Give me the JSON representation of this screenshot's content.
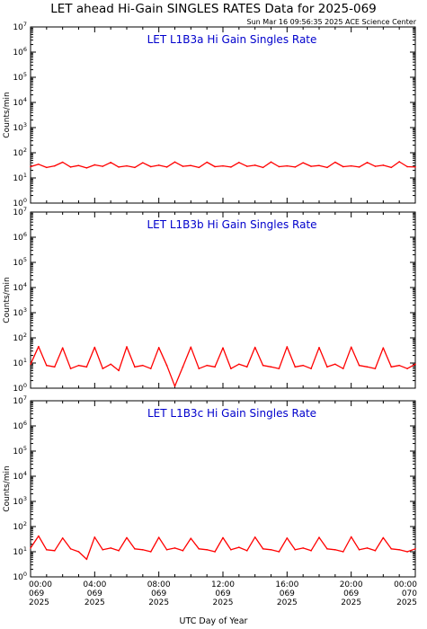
{
  "header": {
    "title": "LET ahead Hi-Gain SINGLES RATES Data for 2025-069",
    "timestamp": "Sun Mar 16 09:56:35 2025 ACE Science Center"
  },
  "chart_data": {
    "type": "line",
    "xlabel": "UTC Day of Year",
    "xlim_hours": [
      0,
      24
    ],
    "x_ticks": [
      {
        "time": "00:00",
        "day": "069",
        "year": "2025"
      },
      {
        "time": "04:00",
        "day": "069",
        "year": "2025"
      },
      {
        "time": "08:00",
        "day": "069",
        "year": "2025"
      },
      {
        "time": "12:00",
        "day": "069",
        "year": "2025"
      },
      {
        "time": "16:00",
        "day": "069",
        "year": "2025"
      },
      {
        "time": "20:00",
        "day": "069",
        "year": "2025"
      },
      {
        "time": "00:00",
        "day": "070",
        "year": "2025"
      }
    ],
    "y_scale": "log",
    "ylim": [
      1,
      10000000
    ],
    "y_tick_exponents": [
      0,
      1,
      2,
      3,
      4,
      5,
      6,
      7
    ],
    "line_color": "#ff0000",
    "label_color": "#0000cc",
    "panels": [
      {
        "label": "LET L1B3a Hi Gain Singles Rate",
        "ylabel": "Counts/min",
        "x_hours": [
          0,
          0.5,
          1,
          1.5,
          2,
          2.5,
          3,
          3.5,
          4,
          4.5,
          5,
          5.5,
          6,
          6.5,
          7,
          7.5,
          8,
          8.5,
          9,
          9.5,
          10,
          10.5,
          11,
          11.5,
          12,
          12.5,
          13,
          13.5,
          14,
          14.5,
          15,
          15.5,
          16,
          16.5,
          17,
          17.5,
          18,
          18.5,
          19,
          19.5,
          20,
          20.5,
          21,
          21.5,
          22,
          22.5,
          23,
          23.5,
          24
        ],
        "values": [
          28,
          35,
          26,
          30,
          42,
          27,
          31,
          25,
          33,
          29,
          41,
          27,
          30,
          26,
          40,
          28,
          32,
          27,
          43,
          29,
          31,
          26,
          42,
          28,
          30,
          27,
          41,
          29,
          32,
          26,
          43,
          28,
          30,
          27,
          40,
          29,
          31,
          26,
          42,
          28,
          30,
          27,
          41,
          29,
          32,
          26,
          44,
          28,
          27
        ]
      },
      {
        "label": "LET L1B3b Hi Gain Singles Rate",
        "ylabel": "Counts/min",
        "x_hours": [
          0,
          0.5,
          1,
          1.5,
          2,
          2.5,
          3,
          3.5,
          4,
          4.5,
          5,
          5.5,
          6,
          6.5,
          7,
          7.5,
          8,
          8.5,
          9,
          9.5,
          10,
          10.5,
          11,
          11.5,
          12,
          12.5,
          13,
          13.5,
          14,
          14.5,
          15,
          15.5,
          16,
          16.5,
          17,
          17.5,
          18,
          18.5,
          19,
          19.5,
          20,
          20.5,
          21,
          21.5,
          22,
          22.5,
          23,
          23.5,
          24
        ],
        "values": [
          9,
          45,
          8,
          7,
          40,
          6,
          8,
          7,
          42,
          6,
          9,
          5,
          44,
          7,
          8,
          6,
          41,
          8,
          1.2,
          7,
          43,
          6,
          8,
          7,
          40,
          6,
          9,
          7,
          42,
          8,
          7,
          6,
          44,
          7,
          8,
          6,
          41,
          7,
          9,
          6,
          43,
          8,
          7,
          6,
          40,
          7,
          8,
          6,
          9
        ]
      },
      {
        "label": "LET L1B3c Hi Gain Singles Rate",
        "ylabel": "Counts/min",
        "x_hours": [
          0,
          0.5,
          1,
          1.5,
          2,
          2.5,
          3,
          3.5,
          4,
          4.5,
          5,
          5.5,
          6,
          6.5,
          7,
          7.5,
          8,
          8.5,
          9,
          9.5,
          10,
          10.5,
          11,
          11.5,
          12,
          12.5,
          13,
          13.5,
          14,
          14.5,
          15,
          15.5,
          16,
          16.5,
          17,
          17.5,
          18,
          18.5,
          19,
          19.5,
          20,
          20.5,
          21,
          21.5,
          22,
          22.5,
          23,
          23.5,
          24
        ],
        "values": [
          14,
          42,
          12,
          11,
          35,
          13,
          10,
          5,
          38,
          12,
          14,
          11,
          36,
          13,
          12,
          10,
          37,
          12,
          14,
          11,
          34,
          13,
          12,
          10,
          36,
          12,
          15,
          11,
          38,
          13,
          12,
          10,
          35,
          12,
          14,
          11,
          37,
          13,
          12,
          10,
          39,
          12,
          14,
          11,
          36,
          13,
          12,
          10,
          13
        ]
      }
    ]
  }
}
